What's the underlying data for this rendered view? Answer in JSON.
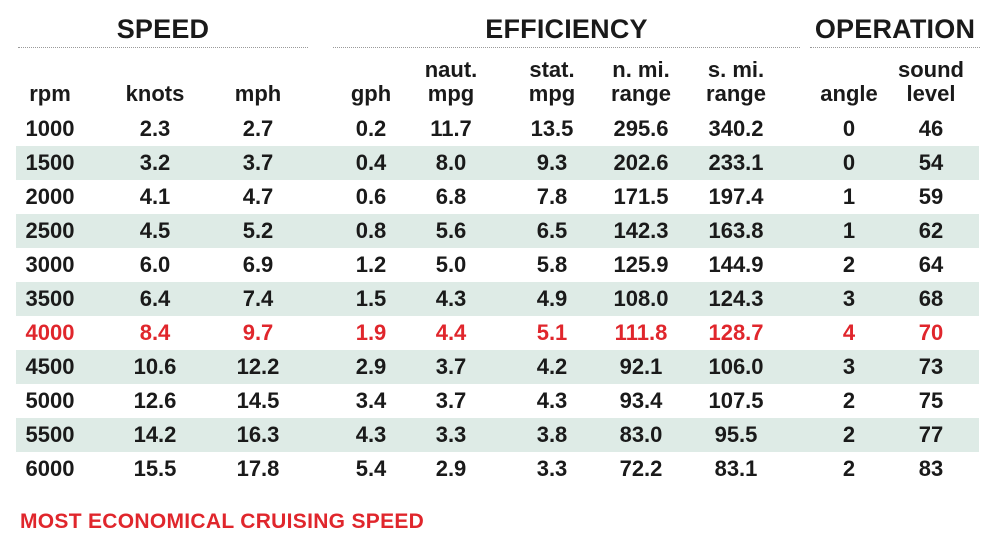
{
  "groups": {
    "speed": "SPEED",
    "efficiency": "EFFICIENCY",
    "operation": "OPERATION"
  },
  "columns": [
    "rpm",
    "knots",
    "mph",
    "gph",
    "naut.\nmpg",
    "stat.\nmpg",
    "n. mi.\nrange",
    "s. mi.\nrange",
    "angle",
    "sound\nlevel"
  ],
  "rows": [
    [
      "1000",
      "2.3",
      "2.7",
      "0.2",
      "11.7",
      "13.5",
      "295.6",
      "340.2",
      "0",
      "46"
    ],
    [
      "1500",
      "3.2",
      "3.7",
      "0.4",
      "8.0",
      "9.3",
      "202.6",
      "233.1",
      "0",
      "54"
    ],
    [
      "2000",
      "4.1",
      "4.7",
      "0.6",
      "6.8",
      "7.8",
      "171.5",
      "197.4",
      "1",
      "59"
    ],
    [
      "2500",
      "4.5",
      "5.2",
      "0.8",
      "5.6",
      "6.5",
      "142.3",
      "163.8",
      "1",
      "62"
    ],
    [
      "3000",
      "6.0",
      "6.9",
      "1.2",
      "5.0",
      "5.8",
      "125.9",
      "144.9",
      "2",
      "64"
    ],
    [
      "3500",
      "6.4",
      "7.4",
      "1.5",
      "4.3",
      "4.9",
      "108.0",
      "124.3",
      "3",
      "68"
    ],
    [
      "4000",
      "8.4",
      "9.7",
      "1.9",
      "4.4",
      "5.1",
      "111.8",
      "128.7",
      "4",
      "70"
    ],
    [
      "4500",
      "10.6",
      "12.2",
      "2.9",
      "3.7",
      "4.2",
      "92.1",
      "106.0",
      "3",
      "73"
    ],
    [
      "5000",
      "12.6",
      "14.5",
      "3.4",
      "3.7",
      "4.3",
      "93.4",
      "107.5",
      "2",
      "75"
    ],
    [
      "5500",
      "14.2",
      "16.3",
      "4.3",
      "3.3",
      "3.8",
      "83.0",
      "95.5",
      "2",
      "77"
    ],
    [
      "6000",
      "15.5",
      "17.8",
      "5.4",
      "2.9",
      "3.3",
      "72.2",
      "83.1",
      "2",
      "83"
    ]
  ],
  "highlight_row_index": 6,
  "footnote": "MOST ECONOMICAL CRUISING SPEED",
  "colors": {
    "highlight": "#e0262c",
    "shaded_row": "#deebe6",
    "text": "#1a1a1a"
  }
}
